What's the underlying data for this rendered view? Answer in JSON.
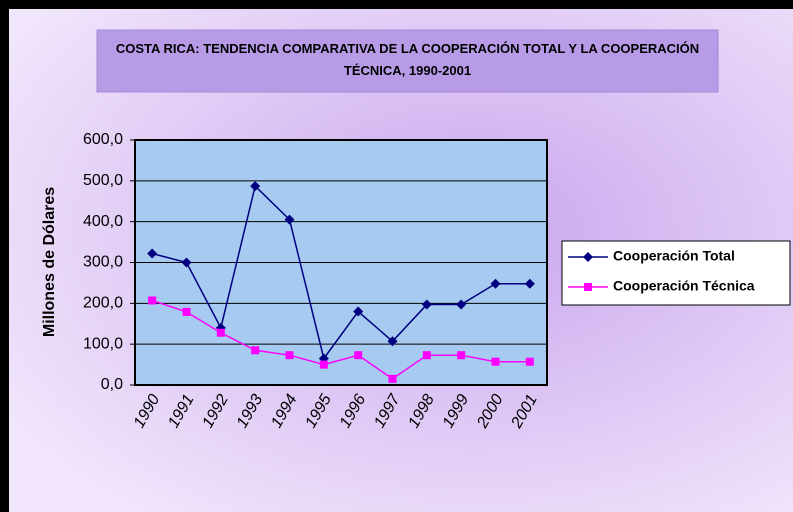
{
  "chart_data": {
    "type": "line",
    "title": "COSTA RICA:  TENDENCIA COMPARATIVA DE LA COOPERACIÓN TOTAL Y LA COOPERACIÓN  TÉCNICA, 1990-2001",
    "y_label": "Millones de Dólares",
    "categories": [
      "1990",
      "1991",
      "1992",
      "1993",
      "1994",
      "1995",
      "1996",
      "1997",
      "1998",
      "1999",
      "2000",
      "2001"
    ],
    "series": [
      {
        "name": "Cooperación Total",
        "color": "#000080",
        "marker": "diamond",
        "values": [
          322,
          300,
          140,
          487,
          405,
          65,
          180,
          107,
          197,
          197,
          248,
          248
        ]
      },
      {
        "name": "Cooperación Técnica",
        "color": "#ff00ff",
        "marker": "square",
        "values": [
          207,
          179,
          128,
          85,
          73,
          50,
          73,
          15,
          73,
          73,
          57,
          57
        ]
      }
    ],
    "ylim": [
      0,
      600
    ],
    "yticks": [
      {
        "value": 0,
        "label": "0,0"
      },
      {
        "value": 100,
        "label": "100,0"
      },
      {
        "value": 200,
        "label": "200,0"
      },
      {
        "value": 300,
        "label": "300,0"
      },
      {
        "value": 400,
        "label": "400,0"
      },
      {
        "value": 500,
        "label": "500,0"
      },
      {
        "value": 600,
        "label": "600,0"
      }
    ],
    "grid": true
  }
}
